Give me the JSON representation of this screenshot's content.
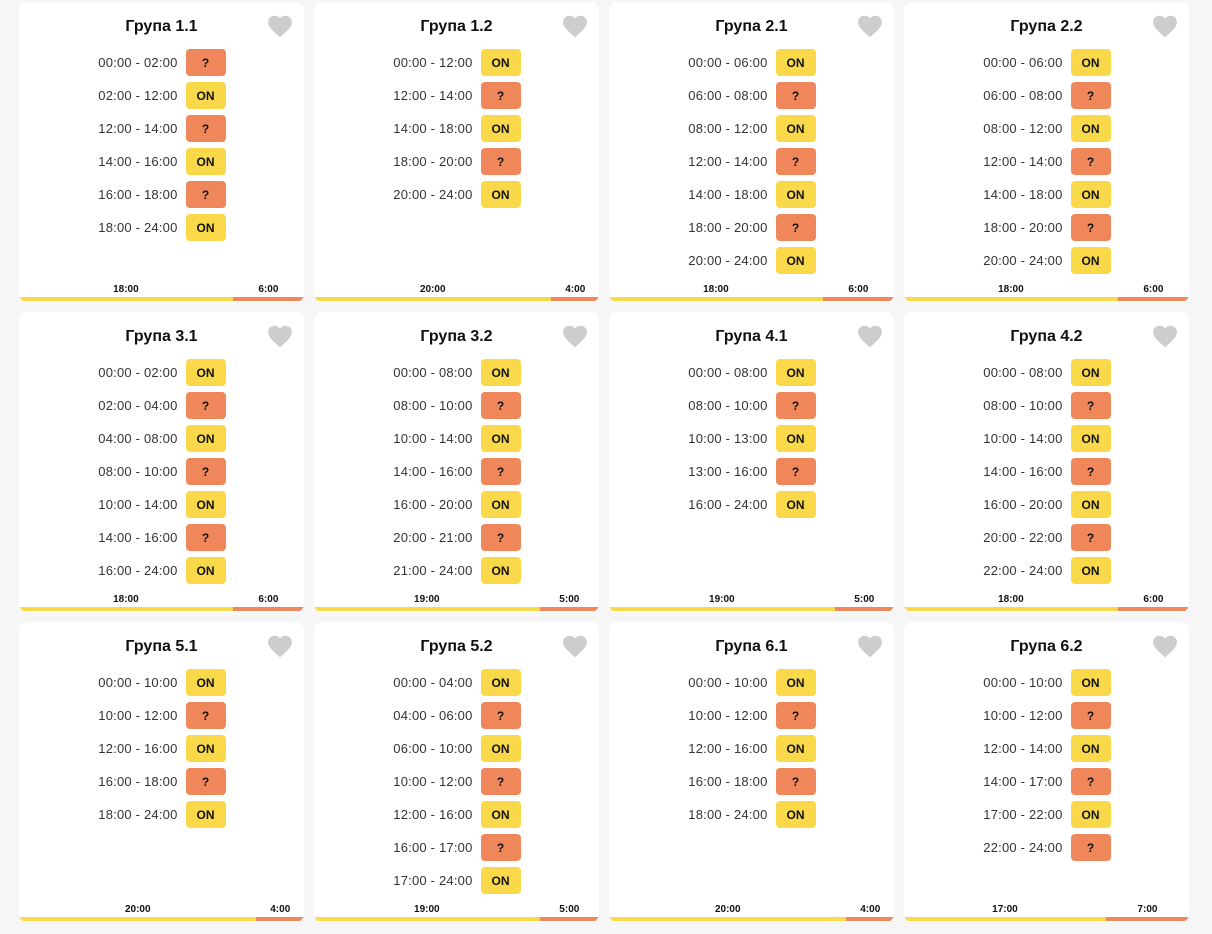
{
  "colors": {
    "on": "#f9d949",
    "unknown": "#ef875b"
  },
  "groups": [
    {
      "title": "Група 1.1",
      "on_total": "18:00",
      "off_total": "6:00",
      "on_fraction": 0.75,
      "slots": [
        [
          "00:00 - 02:00",
          "?"
        ],
        [
          "02:00 - 12:00",
          "ON"
        ],
        [
          "12:00 - 14:00",
          "?"
        ],
        [
          "14:00 - 16:00",
          "ON"
        ],
        [
          "16:00 - 18:00",
          "?"
        ],
        [
          "18:00 - 24:00",
          "ON"
        ]
      ]
    },
    {
      "title": "Група 1.2",
      "on_total": "20:00",
      "off_total": "4:00",
      "on_fraction": 0.8333,
      "slots": [
        [
          "00:00 - 12:00",
          "ON"
        ],
        [
          "12:00 - 14:00",
          "?"
        ],
        [
          "14:00 - 18:00",
          "ON"
        ],
        [
          "18:00 - 20:00",
          "?"
        ],
        [
          "20:00 - 24:00",
          "ON"
        ]
      ]
    },
    {
      "title": "Група 2.1",
      "on_total": "18:00",
      "off_total": "6:00",
      "on_fraction": 0.75,
      "slots": [
        [
          "00:00 - 06:00",
          "ON"
        ],
        [
          "06:00 - 08:00",
          "?"
        ],
        [
          "08:00 - 12:00",
          "ON"
        ],
        [
          "12:00 - 14:00",
          "?"
        ],
        [
          "14:00 - 18:00",
          "ON"
        ],
        [
          "18:00 - 20:00",
          "?"
        ],
        [
          "20:00 - 24:00",
          "ON"
        ]
      ]
    },
    {
      "title": "Група 2.2",
      "on_total": "18:00",
      "off_total": "6:00",
      "on_fraction": 0.75,
      "slots": [
        [
          "00:00 - 06:00",
          "ON"
        ],
        [
          "06:00 - 08:00",
          "?"
        ],
        [
          "08:00 - 12:00",
          "ON"
        ],
        [
          "12:00 - 14:00",
          "?"
        ],
        [
          "14:00 - 18:00",
          "ON"
        ],
        [
          "18:00 - 20:00",
          "?"
        ],
        [
          "20:00 - 24:00",
          "ON"
        ]
      ]
    },
    {
      "title": "Група 3.1",
      "on_total": "18:00",
      "off_total": "6:00",
      "on_fraction": 0.75,
      "slots": [
        [
          "00:00 - 02:00",
          "ON"
        ],
        [
          "02:00 - 04:00",
          "?"
        ],
        [
          "04:00 - 08:00",
          "ON"
        ],
        [
          "08:00 - 10:00",
          "?"
        ],
        [
          "10:00 - 14:00",
          "ON"
        ],
        [
          "14:00 - 16:00",
          "?"
        ],
        [
          "16:00 - 24:00",
          "ON"
        ]
      ]
    },
    {
      "title": "Група 3.2",
      "on_total": "19:00",
      "off_total": "5:00",
      "on_fraction": 0.7917,
      "slots": [
        [
          "00:00 - 08:00",
          "ON"
        ],
        [
          "08:00 - 10:00",
          "?"
        ],
        [
          "10:00 - 14:00",
          "ON"
        ],
        [
          "14:00 - 16:00",
          "?"
        ],
        [
          "16:00 - 20:00",
          "ON"
        ],
        [
          "20:00 - 21:00",
          "?"
        ],
        [
          "21:00 - 24:00",
          "ON"
        ]
      ]
    },
    {
      "title": "Група 4.1",
      "on_total": "19:00",
      "off_total": "5:00",
      "on_fraction": 0.7917,
      "slots": [
        [
          "00:00 - 08:00",
          "ON"
        ],
        [
          "08:00 - 10:00",
          "?"
        ],
        [
          "10:00 - 13:00",
          "ON"
        ],
        [
          "13:00 - 16:00",
          "?"
        ],
        [
          "16:00 - 24:00",
          "ON"
        ]
      ]
    },
    {
      "title": "Група 4.2",
      "on_total": "18:00",
      "off_total": "6:00",
      "on_fraction": 0.75,
      "slots": [
        [
          "00:00 - 08:00",
          "ON"
        ],
        [
          "08:00 - 10:00",
          "?"
        ],
        [
          "10:00 - 14:00",
          "ON"
        ],
        [
          "14:00 - 16:00",
          "?"
        ],
        [
          "16:00 - 20:00",
          "ON"
        ],
        [
          "20:00 - 22:00",
          "?"
        ],
        [
          "22:00 - 24:00",
          "ON"
        ]
      ]
    },
    {
      "title": "Група 5.1",
      "on_total": "20:00",
      "off_total": "4:00",
      "on_fraction": 0.8333,
      "slots": [
        [
          "00:00 - 10:00",
          "ON"
        ],
        [
          "10:00 - 12:00",
          "?"
        ],
        [
          "12:00 - 16:00",
          "ON"
        ],
        [
          "16:00 - 18:00",
          "?"
        ],
        [
          "18:00 - 24:00",
          "ON"
        ]
      ]
    },
    {
      "title": "Група 5.2",
      "on_total": "19:00",
      "off_total": "5:00",
      "on_fraction": 0.7917,
      "slots": [
        [
          "00:00 - 04:00",
          "ON"
        ],
        [
          "04:00 - 06:00",
          "?"
        ],
        [
          "06:00 - 10:00",
          "ON"
        ],
        [
          "10:00 - 12:00",
          "?"
        ],
        [
          "12:00 - 16:00",
          "ON"
        ],
        [
          "16:00 - 17:00",
          "?"
        ],
        [
          "17:00 - 24:00",
          "ON"
        ]
      ]
    },
    {
      "title": "Група 6.1",
      "on_total": "20:00",
      "off_total": "4:00",
      "on_fraction": 0.8333,
      "slots": [
        [
          "00:00 - 10:00",
          "ON"
        ],
        [
          "10:00 - 12:00",
          "?"
        ],
        [
          "12:00 - 16:00",
          "ON"
        ],
        [
          "16:00 - 18:00",
          "?"
        ],
        [
          "18:00 - 24:00",
          "ON"
        ]
      ]
    },
    {
      "title": "Група 6.2",
      "on_total": "17:00",
      "off_total": "7:00",
      "on_fraction": 0.7083,
      "slots": [
        [
          "00:00 - 10:00",
          "ON"
        ],
        [
          "10:00 - 12:00",
          "?"
        ],
        [
          "12:00 - 14:00",
          "ON"
        ],
        [
          "14:00 - 17:00",
          "?"
        ],
        [
          "17:00 - 22:00",
          "ON"
        ],
        [
          "22:00 - 24:00",
          "?"
        ]
      ]
    }
  ]
}
